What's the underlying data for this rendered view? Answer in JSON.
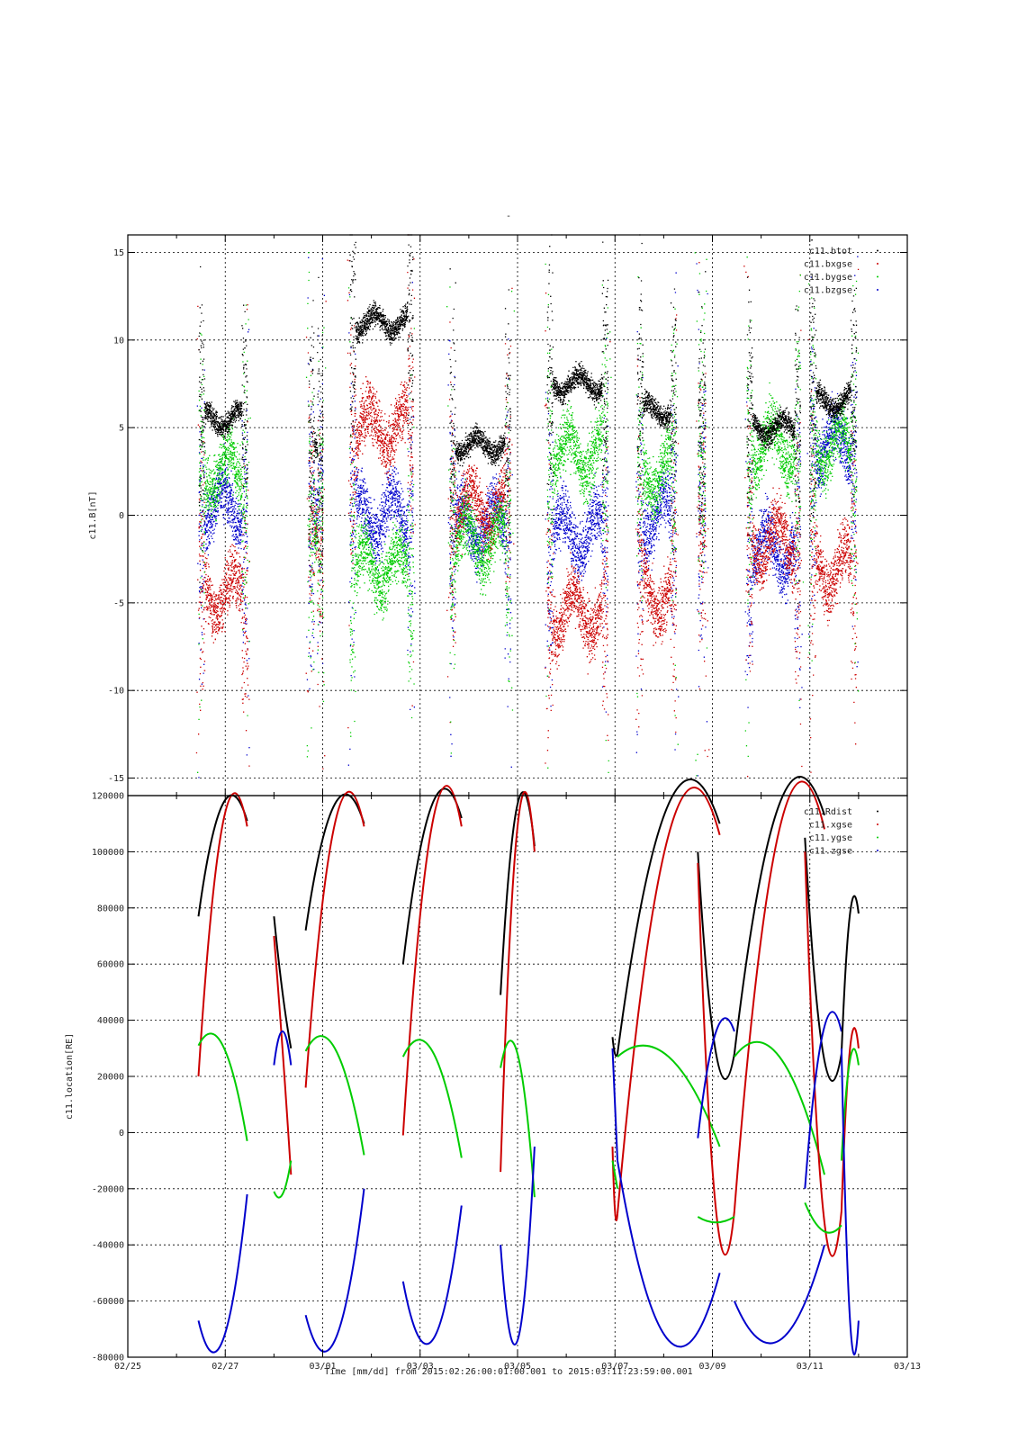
{
  "figure": {
    "title": "-",
    "xlabel": "Time [mm/dd]  from 2015:02:26:00:01:00.001  to  2015:03:11:23:59:00.001"
  },
  "chart_data": [
    {
      "type": "scatter",
      "ylabel": "c11.B[nT]",
      "x_ticks": [
        "02/25",
        "02/27",
        "03/01",
        "03/03",
        "03/05",
        "03/07",
        "03/09",
        "03/11",
        "03/13"
      ],
      "x_range_days": [
        0,
        16
      ],
      "y_ticks": [
        "-15",
        "-10",
        "-5",
        "0",
        "5",
        "10",
        "15"
      ],
      "ylim": [
        -16,
        16
      ],
      "grid": true,
      "legend_position": "top-right",
      "series": [
        {
          "name": "c11.btot",
          "color": "#000000"
        },
        {
          "name": "c11.bxgse",
          "color": "#cc0000"
        },
        {
          "name": "c11.bygse",
          "color": "#00cc00"
        },
        {
          "name": "c11.bzgse",
          "color": "#0000cc"
        }
      ],
      "segments": [
        {
          "start": 1.45,
          "end": 2.45,
          "btot": 5.5,
          "bx": -4.5,
          "by": 2.5,
          "bz": 0.5
        },
        {
          "start": 3.7,
          "end": 4.0,
          "btot": 4.0,
          "bx": 0.0,
          "by": 0.0,
          "bz": 0.0
        },
        {
          "start": 4.55,
          "end": 5.85,
          "btot": 11.0,
          "bx": 5.0,
          "by": -3.0,
          "bz": 0.0
        },
        {
          "start": 6.6,
          "end": 7.85,
          "btot": 4.0,
          "bx": 0.5,
          "by": -1.5,
          "bz": -0.5
        },
        {
          "start": 8.6,
          "end": 9.85,
          "btot": 7.5,
          "bx": -5.5,
          "by": 3.5,
          "bz": -1.0
        },
        {
          "start": 10.45,
          "end": 11.25,
          "btot": 6.0,
          "bx": -4.5,
          "by": 2.5,
          "bz": 0.0
        },
        {
          "start": 11.7,
          "end": 11.85,
          "btot": 5.0,
          "bx": 0.0,
          "by": 3.0,
          "bz": 0.0
        },
        {
          "start": 12.7,
          "end": 13.8,
          "btot": 5.0,
          "bx": -1.5,
          "by": 4.0,
          "bz": -2.0
        },
        {
          "start": 14.0,
          "end": 14.95,
          "btot": 6.5,
          "bx": -3.0,
          "by": 4.0,
          "bz": 4.0
        }
      ]
    },
    {
      "type": "line",
      "ylabel": "c11.location[RE]",
      "x_ticks": [
        "02/25",
        "02/27",
        "03/01",
        "03/03",
        "03/05",
        "03/07",
        "03/09",
        "03/11",
        "03/13"
      ],
      "x_range_days": [
        0,
        16
      ],
      "y_ticks": [
        "-80000",
        "-60000",
        "-40000",
        "-20000",
        "0",
        "20000",
        "40000",
        "60000",
        "80000",
        "100000",
        "120000"
      ],
      "ylim": [
        -80000,
        120000
      ],
      "grid": true,
      "legend_position": "top-right",
      "series": [
        {
          "name": "c11.Rdist",
          "color": "#000000"
        },
        {
          "name": "c11.xgse",
          "color": "#cc0000"
        },
        {
          "name": "c11.ygse",
          "color": "#00cc00"
        },
        {
          "name": "c11.zgse",
          "color": "#0000cc"
        }
      ],
      "segments": [
        {
          "start": 1.45,
          "end": 2.45,
          "rdist": [
            77000,
            117000,
            111000
          ],
          "xgse": [
            20000,
            110000,
            109000
          ],
          "ygse": [
            31000,
            31000,
            -3000
          ],
          "zgse": [
            -67000,
            -74000,
            -22000
          ]
        },
        {
          "start": 3.0,
          "end": 3.35,
          "rdist": [
            77000,
            50000,
            30000
          ],
          "xgse": [
            70000,
            30000,
            -15000
          ],
          "ygse": [
            -21000,
            -22000,
            -10000
          ],
          "zgse": [
            24000,
            36000,
            24000
          ]
        },
        {
          "start": 3.65,
          "end": 4.85,
          "rdist": [
            72000,
            117000,
            110000
          ],
          "xgse": [
            16000,
            110000,
            109000
          ],
          "ygse": [
            29000,
            30000,
            -8000
          ],
          "zgse": [
            -65000,
            -74000,
            -20000
          ]
        },
        {
          "start": 5.65,
          "end": 6.85,
          "rdist": [
            60000,
            117000,
            112000
          ],
          "xgse": [
            -1000,
            110000,
            109000
          ],
          "ygse": [
            27000,
            29000,
            -9000
          ],
          "zgse": [
            -53000,
            -74000,
            -26000
          ]
        },
        {
          "start": 7.65,
          "end": 8.35,
          "rdist": [
            49000,
            117000,
            102000
          ],
          "xgse": [
            -14000,
            109000,
            100000
          ],
          "ygse": [
            23000,
            28000,
            -23000
          ],
          "zgse": [
            -40000,
            -74000,
            -5000
          ]
        },
        {
          "start": 9.95,
          "end": 10.05,
          "rdist": [
            34000,
            28000,
            28000
          ],
          "xgse": [
            -5000,
            -28000,
            -29000
          ],
          "ygse": [
            -10000,
            -15000,
            -20000
          ],
          "zgse": [
            30000,
            10000,
            -10000
          ]
        },
        {
          "start": 10.05,
          "end": 12.15,
          "rdist": [
            28000,
            117000,
            110000
          ],
          "xgse": [
            -29000,
            106000,
            106000
          ],
          "ygse": [
            27000,
            27000,
            -5000
          ],
          "zgse": [
            -10000,
            -74000,
            -50000
          ]
        },
        {
          "start": 11.7,
          "end": 12.45,
          "rdist": [
            100000,
            28000,
            28000
          ],
          "xgse": [
            96000,
            -28000,
            -28000
          ],
          "ygse": [
            -30000,
            -32000,
            -30000
          ],
          "zgse": [
            -2000,
            36000,
            36000
          ]
        },
        {
          "start": 12.45,
          "end": 14.3,
          "rdist": [
            28000,
            117000,
            113000
          ],
          "xgse": [
            -28000,
            108000,
            108000
          ],
          "ygse": [
            27000,
            27000,
            -15000
          ],
          "zgse": [
            -60000,
            -74000,
            -40000
          ]
        },
        {
          "start": 13.9,
          "end": 14.65,
          "rdist": [
            105000,
            28000,
            28000
          ],
          "xgse": [
            100000,
            -28000,
            -28000
          ],
          "ygse": [
            -25000,
            -35000,
            -33000
          ],
          "zgse": [
            -20000,
            36000,
            36000
          ]
        },
        {
          "start": 14.65,
          "end": 15.0,
          "rdist": [
            28000,
            78000,
            78000
          ],
          "xgse": [
            -28000,
            30000,
            30000
          ],
          "ygse": [
            -10000,
            26000,
            24000
          ],
          "zgse": [
            30000,
            -67000,
            -67000
          ]
        }
      ]
    }
  ]
}
